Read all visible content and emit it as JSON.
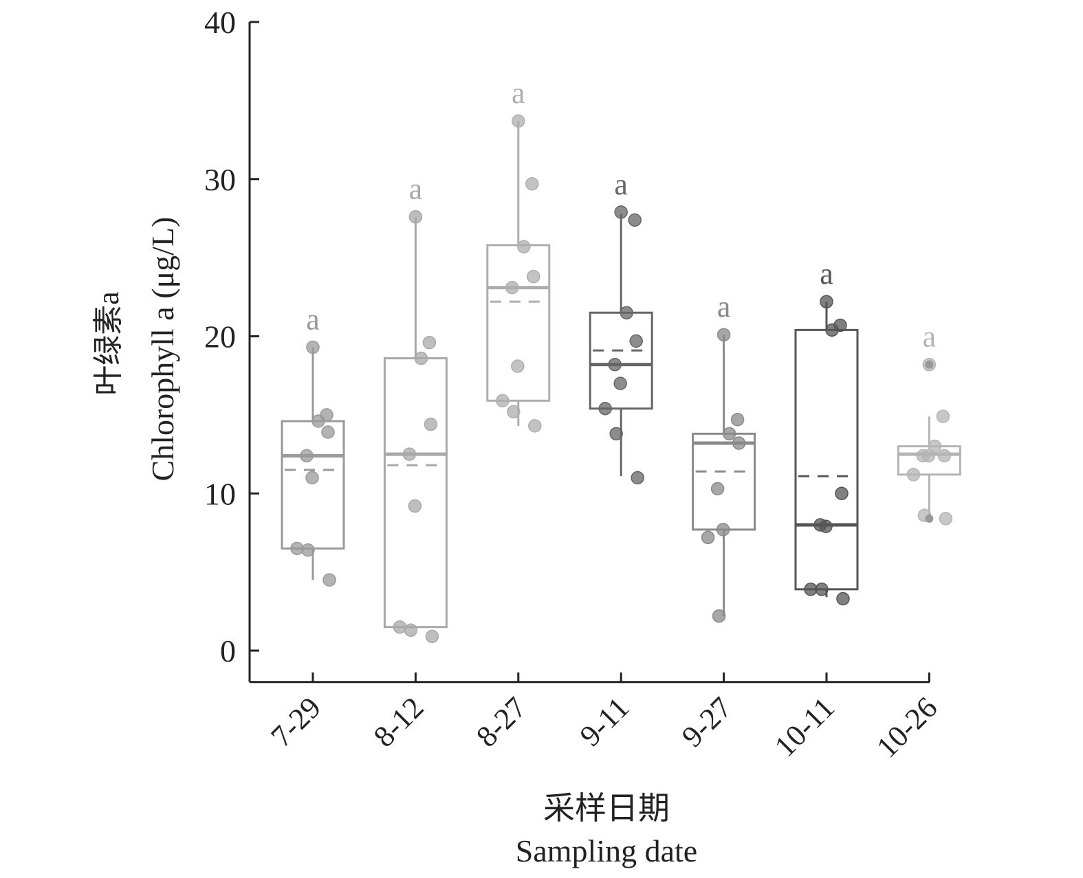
{
  "chart_data": {
    "type": "box",
    "title": "",
    "xlabel_cn": "采样日期",
    "xlabel": "Sampling date",
    "ylabel_cn": "叶绿素a",
    "ylabel": "Chlorophyll a (μg/L)",
    "ylim": [
      -2,
      40
    ],
    "yticks": [
      0,
      10,
      20,
      30,
      40
    ],
    "grid": false,
    "categories": [
      "7-29",
      "8-12",
      "8-27",
      "9-11",
      "9-27",
      "10-11",
      "10-26"
    ],
    "boxes": [
      {
        "q1": 6.5,
        "median": 12.4,
        "q3": 14.6,
        "mean": 11.5,
        "whisker_low": 4.5,
        "whisker_high": 19.3,
        "letter": "a",
        "color": "#9a9a9a",
        "points": [
          19.3,
          15.0,
          14.6,
          13.9,
          12.4,
          11.0,
          6.5,
          6.4,
          4.5
        ],
        "outliers": []
      },
      {
        "q1": 1.5,
        "median": 12.5,
        "q3": 18.6,
        "mean": 11.8,
        "whisker_low": 1.5,
        "whisker_high": 27.6,
        "letter": "a",
        "color": "#a8a8a8",
        "points": [
          27.6,
          19.6,
          18.6,
          14.4,
          12.5,
          9.2,
          1.5,
          1.3,
          0.9
        ],
        "outliers": []
      },
      {
        "q1": 15.9,
        "median": 23.1,
        "q3": 25.8,
        "mean": 22.2,
        "whisker_low": 14.3,
        "whisker_high": 33.7,
        "letter": "a",
        "color": "#aeaeae",
        "points": [
          33.7,
          29.7,
          25.7,
          23.8,
          23.1,
          18.1,
          15.9,
          15.2,
          14.3
        ],
        "outliers": []
      },
      {
        "q1": 15.4,
        "median": 18.2,
        "q3": 21.5,
        "mean": 19.1,
        "whisker_low": 11.1,
        "whisker_high": 27.8,
        "letter": "a",
        "color": "#666666",
        "points": [
          27.9,
          27.4,
          21.5,
          19.7,
          18.2,
          17.0,
          15.4,
          13.8,
          11.0
        ],
        "outliers": []
      },
      {
        "q1": 7.7,
        "median": 13.2,
        "q3": 13.8,
        "mean": 11.4,
        "whisker_low": 2.2,
        "whisker_high": 20.1,
        "letter": "a",
        "color": "#8a8a8a",
        "points": [
          20.1,
          14.7,
          13.8,
          13.2,
          10.3,
          7.7,
          7.2,
          2.2
        ],
        "outliers": []
      },
      {
        "q1": 3.9,
        "median": 8.0,
        "q3": 20.4,
        "mean": 11.1,
        "whisker_low": 3.4,
        "whisker_high": 22.2,
        "letter": "a",
        "color": "#555555",
        "points": [
          22.2,
          20.7,
          20.4,
          10.0,
          8.0,
          7.9,
          3.9,
          3.9,
          3.3
        ],
        "outliers": []
      },
      {
        "q1": 11.2,
        "median": 12.5,
        "q3": 13.0,
        "mean": 12.5,
        "whisker_low": 8.4,
        "whisker_high": 14.9,
        "letter": "a",
        "color": "#b4b4b4",
        "points": [
          18.2,
          14.9,
          13.0,
          12.4,
          12.4,
          12.4,
          11.2,
          8.6,
          8.4
        ],
        "outliers": [
          18.2,
          8.4
        ]
      }
    ]
  }
}
